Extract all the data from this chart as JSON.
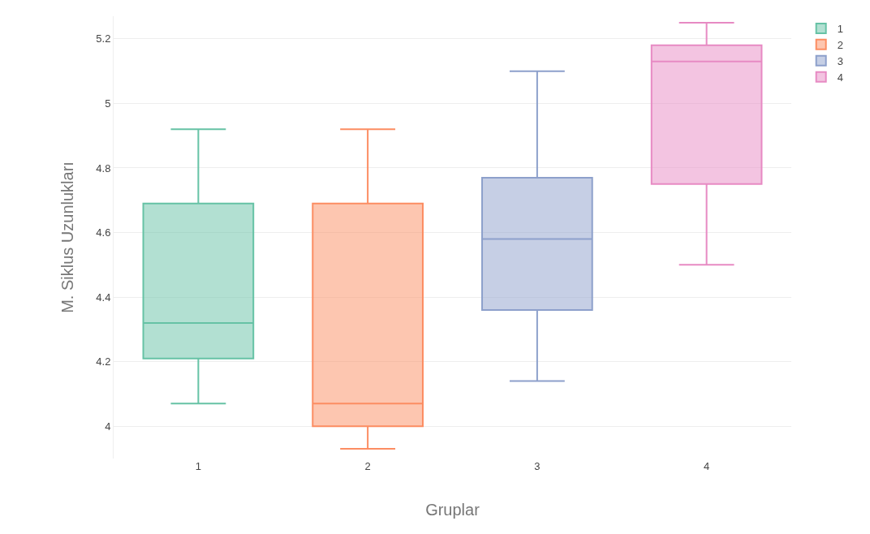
{
  "chart_data": {
    "type": "box",
    "xlabel": "Gruplar",
    "ylabel": "M. Siklus Uzunlukları",
    "categories": [
      "1",
      "2",
      "3",
      "4"
    ],
    "ylim": [
      3.9,
      5.27
    ],
    "yticks": [
      4,
      4.2,
      4.4,
      4.6,
      4.8,
      5,
      5.2
    ],
    "grid": "y",
    "legend": "top right",
    "series": [
      {
        "name": "1",
        "color": "#66c2a5",
        "x": [
          "1"
        ],
        "boxes": [
          {
            "low": 4.07,
            "q1": 4.21,
            "median": 4.32,
            "q3": 4.69,
            "high": 4.92
          }
        ]
      },
      {
        "name": "2",
        "color": "#fc8d62",
        "x": [
          "2"
        ],
        "boxes": [
          {
            "low": 3.93,
            "q1": 4.0,
            "median": 4.07,
            "q3": 4.69,
            "high": 4.92
          }
        ]
      },
      {
        "name": "3",
        "color": "#8da0cb",
        "x": [
          "3"
        ],
        "boxes": [
          {
            "low": 4.14,
            "q1": 4.36,
            "median": 4.58,
            "q3": 4.77,
            "high": 5.1
          }
        ]
      },
      {
        "name": "4",
        "color": "#e78ac3",
        "x": [
          "4"
        ],
        "boxes": [
          {
            "low": 4.5,
            "q1": 4.75,
            "median": 5.13,
            "q3": 5.18,
            "high": 5.25
          }
        ]
      }
    ]
  }
}
